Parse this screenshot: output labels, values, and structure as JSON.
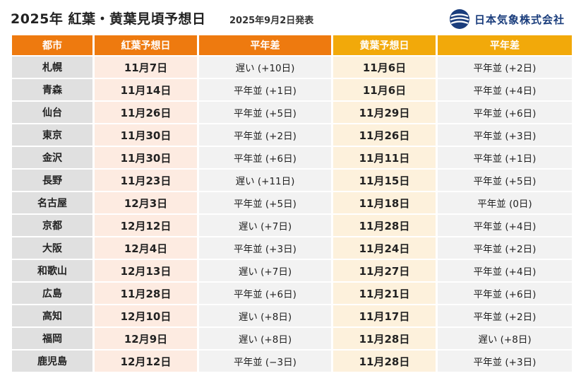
{
  "header": {
    "title": "2025年 紅葉・黄葉見頃予想日",
    "date": "2025年9月2日発表",
    "brand": "日本気象株式会社",
    "brand_color": "#1a3d7c"
  },
  "colors": {
    "koyo_header": "#ee7a0f",
    "oyo_header": "#f2a90a"
  },
  "columns": [
    "都市",
    "紅葉予想日",
    "平年差",
    "黄葉予想日",
    "平年差"
  ],
  "rows": [
    {
      "city": "札幌",
      "koyo": "11月7日",
      "koyo_diff": "遅い (+10日)",
      "oyo": "11月6日",
      "oyo_diff": "平年並 (+2日)"
    },
    {
      "city": "青森",
      "koyo": "11月14日",
      "koyo_diff": "平年並 (+1日)",
      "oyo": "11月6日",
      "oyo_diff": "平年並 (+4日)"
    },
    {
      "city": "仙台",
      "koyo": "11月26日",
      "koyo_diff": "平年並 (+5日)",
      "oyo": "11月29日",
      "oyo_diff": "平年並 (+6日)"
    },
    {
      "city": "東京",
      "koyo": "11月30日",
      "koyo_diff": "平年並 (+2日)",
      "oyo": "11月26日",
      "oyo_diff": "平年並 (+3日)"
    },
    {
      "city": "金沢",
      "koyo": "11月30日",
      "koyo_diff": "平年並 (+6日)",
      "oyo": "11月11日",
      "oyo_diff": "平年並 (+1日)"
    },
    {
      "city": "長野",
      "koyo": "11月23日",
      "koyo_diff": "遅い (+11日)",
      "oyo": "11月15日",
      "oyo_diff": "平年並 (+5日)"
    },
    {
      "city": "名古屋",
      "koyo": "12月3日",
      "koyo_diff": "平年並 (+5日)",
      "oyo": "11月18日",
      "oyo_diff": "平年並 (0日)"
    },
    {
      "city": "京都",
      "koyo": "12月12日",
      "koyo_diff": "遅い (+7日)",
      "oyo": "11月28日",
      "oyo_diff": "平年並 (+4日)"
    },
    {
      "city": "大阪",
      "koyo": "12月4日",
      "koyo_diff": "平年並 (+3日)",
      "oyo": "11月24日",
      "oyo_diff": "平年並 (+2日)"
    },
    {
      "city": "和歌山",
      "koyo": "12月13日",
      "koyo_diff": "遅い (+7日)",
      "oyo": "11月27日",
      "oyo_diff": "平年並 (+4日)"
    },
    {
      "city": "広島",
      "koyo": "11月28日",
      "koyo_diff": "平年並 (+6日)",
      "oyo": "11月21日",
      "oyo_diff": "平年並 (+6日)"
    },
    {
      "city": "高知",
      "koyo": "12月10日",
      "koyo_diff": "遅い (+8日)",
      "oyo": "11月17日",
      "oyo_diff": "平年並 (+2日)"
    },
    {
      "city": "福岡",
      "koyo": "12月9日",
      "koyo_diff": "遅い (+8日)",
      "oyo": "11月28日",
      "oyo_diff": "遅い (+8日)"
    },
    {
      "city": "鹿児島",
      "koyo": "12月12日",
      "koyo_diff": "平年並 (−3日)",
      "oyo": "11月28日",
      "oyo_diff": "平年並 (+3日)"
    }
  ]
}
